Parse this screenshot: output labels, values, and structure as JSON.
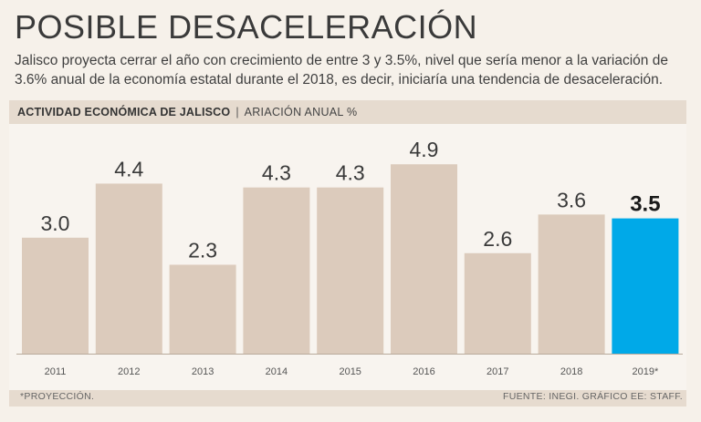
{
  "headline": "POSIBLE DESACELERACIÓN",
  "subtitle": "Jalisco proyecta cerrar el año con crecimiento de entre 3 y 3.5%, nivel que sería menor a la variación de 3.6% anual de la economía estatal durante el 2018, es decir, iniciaría una tendencia de desaceleración.",
  "band": {
    "title": "ACTIVIDAD ECONÓMICA DE JALISCO",
    "separator": "|",
    "unit": "ARIACIÓN ANUAL %"
  },
  "footer": {
    "note": "*PROYECCIÓN.",
    "source": "FUENTE: INEGI. GRÁFICO EE: STAFF."
  },
  "chart_data": {
    "type": "bar",
    "categories": [
      "2011",
      "2012",
      "2013",
      "2014",
      "2015",
      "2016",
      "2017",
      "2018",
      "2019*"
    ],
    "values": [
      3.0,
      4.4,
      2.3,
      4.3,
      4.3,
      4.9,
      2.6,
      3.6,
      3.5
    ],
    "value_labels": [
      "3.0",
      "4.4",
      "2.3",
      "4.3",
      "4.3",
      "4.9",
      "2.6",
      "3.6",
      "3.5"
    ],
    "highlight_index": 8,
    "colors": {
      "bar": "#dccbbc",
      "highlight": "#00a9e8",
      "baseline": "#b8aa9c"
    },
    "ylim": [
      0,
      5.6
    ]
  }
}
